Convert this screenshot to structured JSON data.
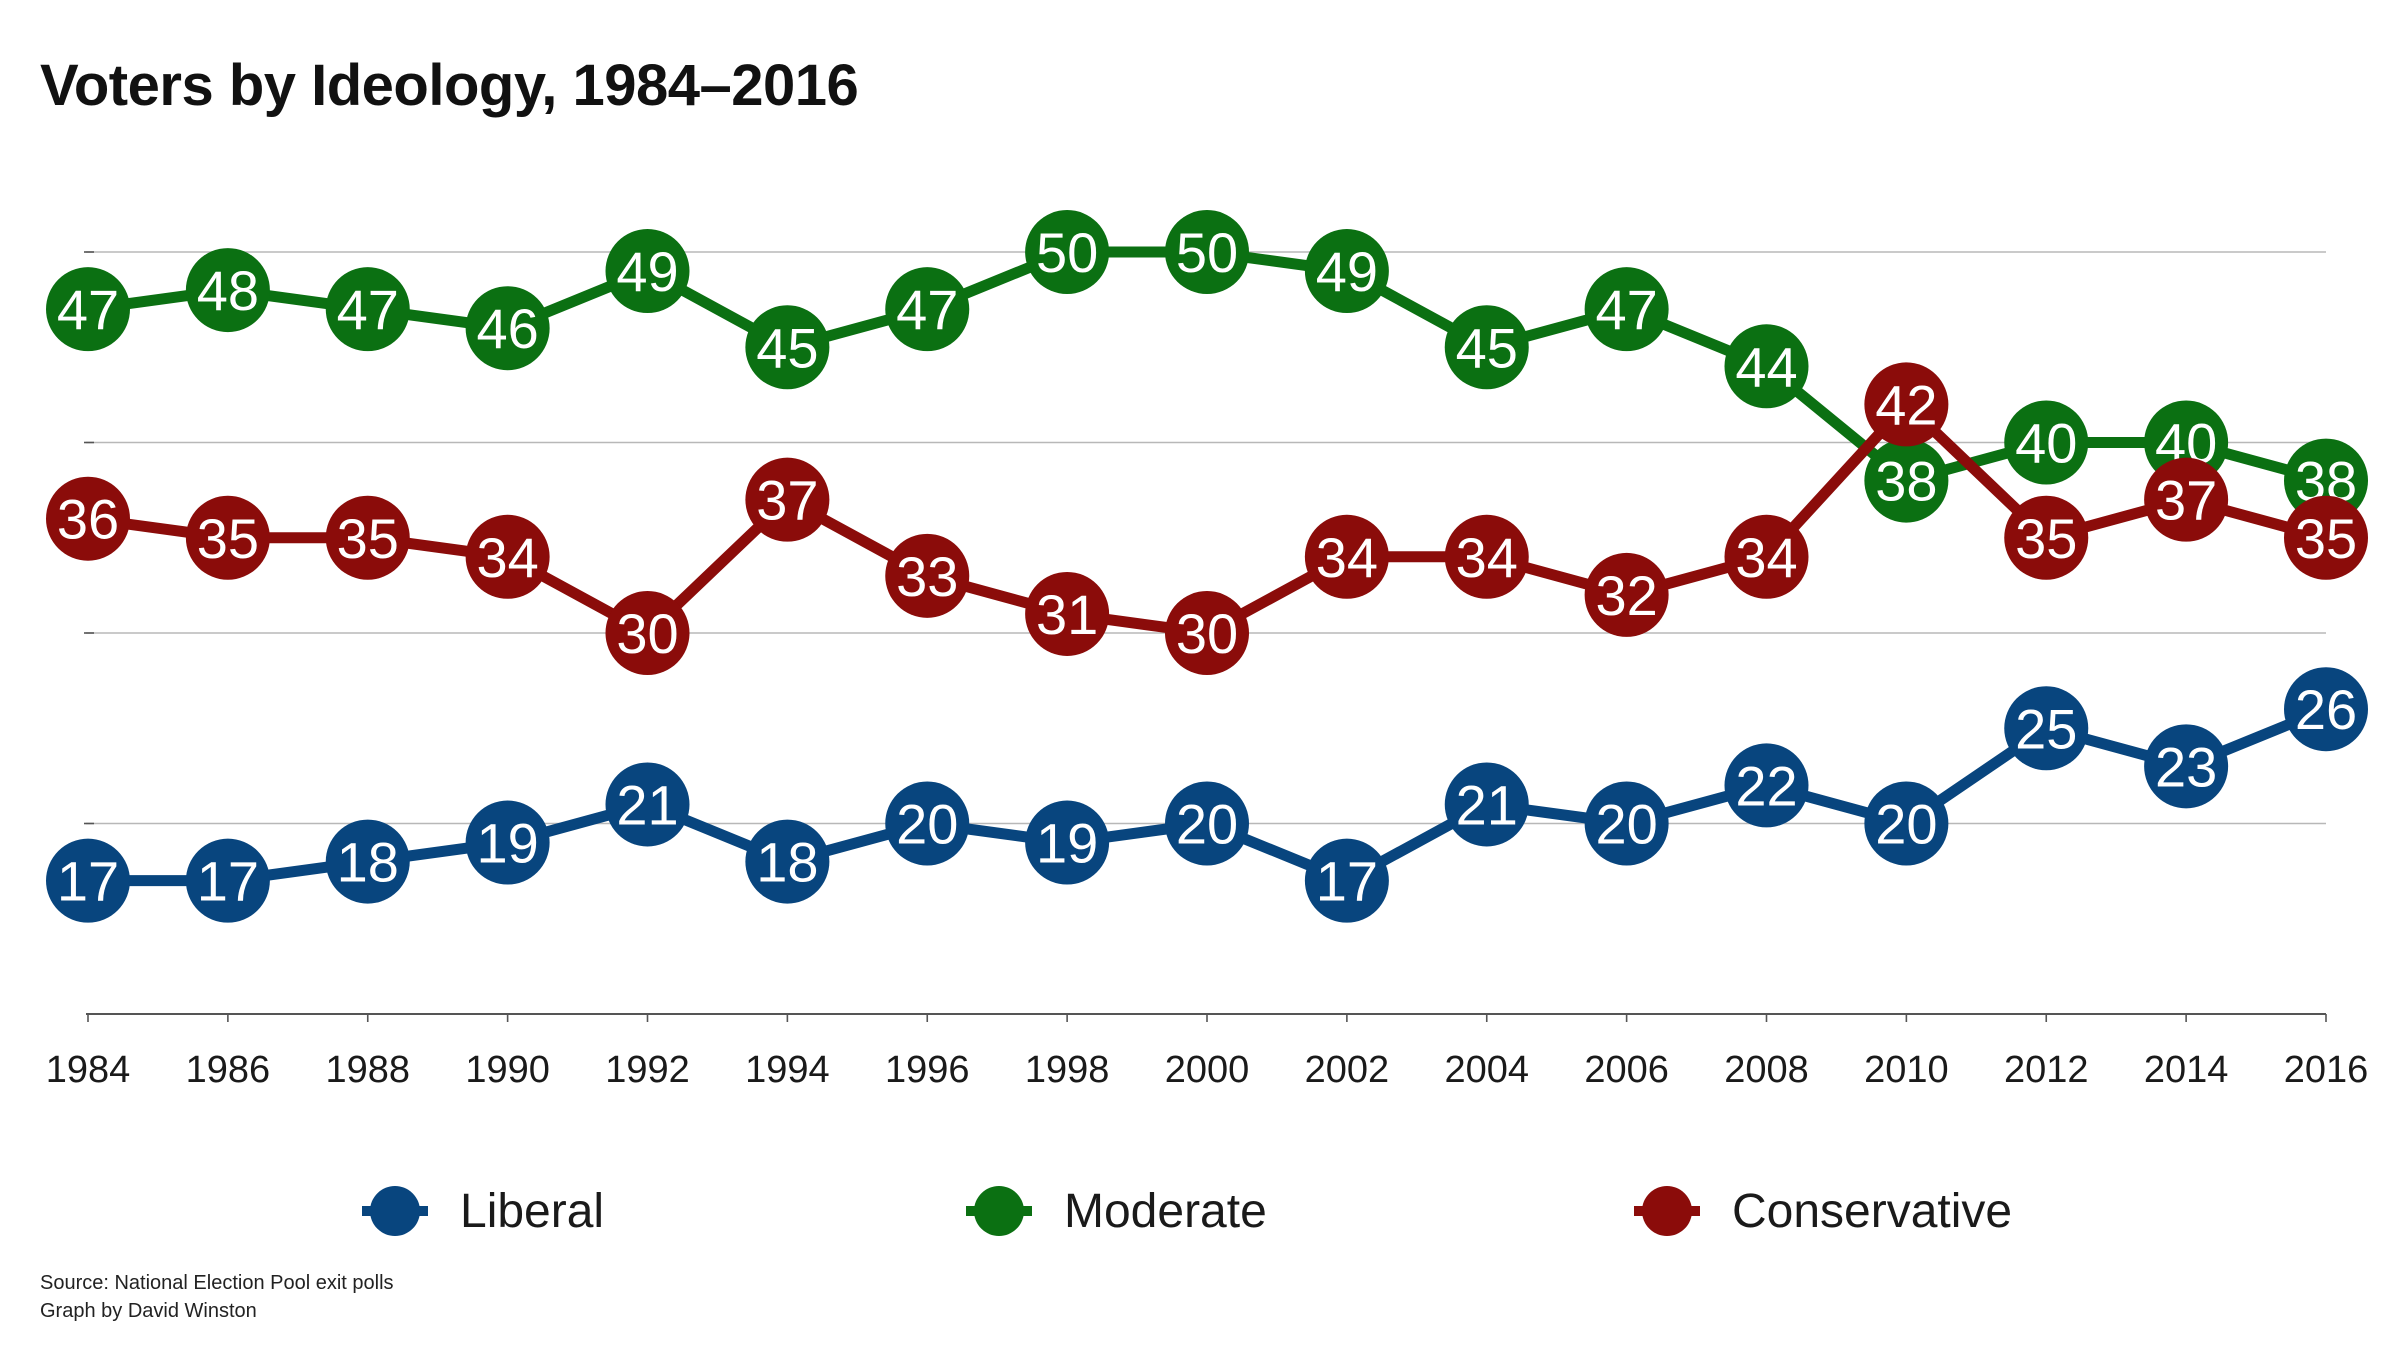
{
  "title": "Voters by Ideology, 1984–2016",
  "source": "Source: National Election Pool exit polls",
  "credit": "Graph by David Winston",
  "colors": {
    "liberal": "#08457e",
    "moderate": "#0b7012",
    "conservative": "#8b0c0a",
    "grid": "#b8b8b8",
    "axis": "#555555"
  },
  "chart_data": {
    "type": "line",
    "title": "Voters by Ideology, 1984–2016",
    "x": [
      "1984",
      "1986",
      "1988",
      "1990",
      "1992",
      "1994",
      "1996",
      "1998",
      "2000",
      "2002",
      "2004",
      "2006",
      "2008",
      "2010",
      "2012",
      "2014",
      "2016"
    ],
    "series": [
      {
        "name": "Liberal",
        "key": "liberal",
        "values": [
          17,
          17,
          18,
          19,
          21,
          18,
          20,
          19,
          20,
          17,
          21,
          20,
          22,
          20,
          25,
          23,
          26
        ]
      },
      {
        "name": "Moderate",
        "key": "moderate",
        "values": [
          47,
          48,
          47,
          46,
          49,
          45,
          47,
          50,
          50,
          49,
          45,
          47,
          44,
          38,
          40,
          40,
          38
        ]
      },
      {
        "name": "Conservative",
        "key": "conservative",
        "values": [
          36,
          35,
          35,
          34,
          30,
          37,
          33,
          31,
          30,
          34,
          34,
          32,
          34,
          42,
          35,
          37,
          35
        ]
      }
    ],
    "ylim": [
      10,
      50
    ],
    "yticks": [
      10,
      20,
      30,
      40,
      50
    ],
    "grid": true,
    "data_labels": true,
    "legend": "bottom",
    "xlabel": "",
    "ylabel": ""
  }
}
